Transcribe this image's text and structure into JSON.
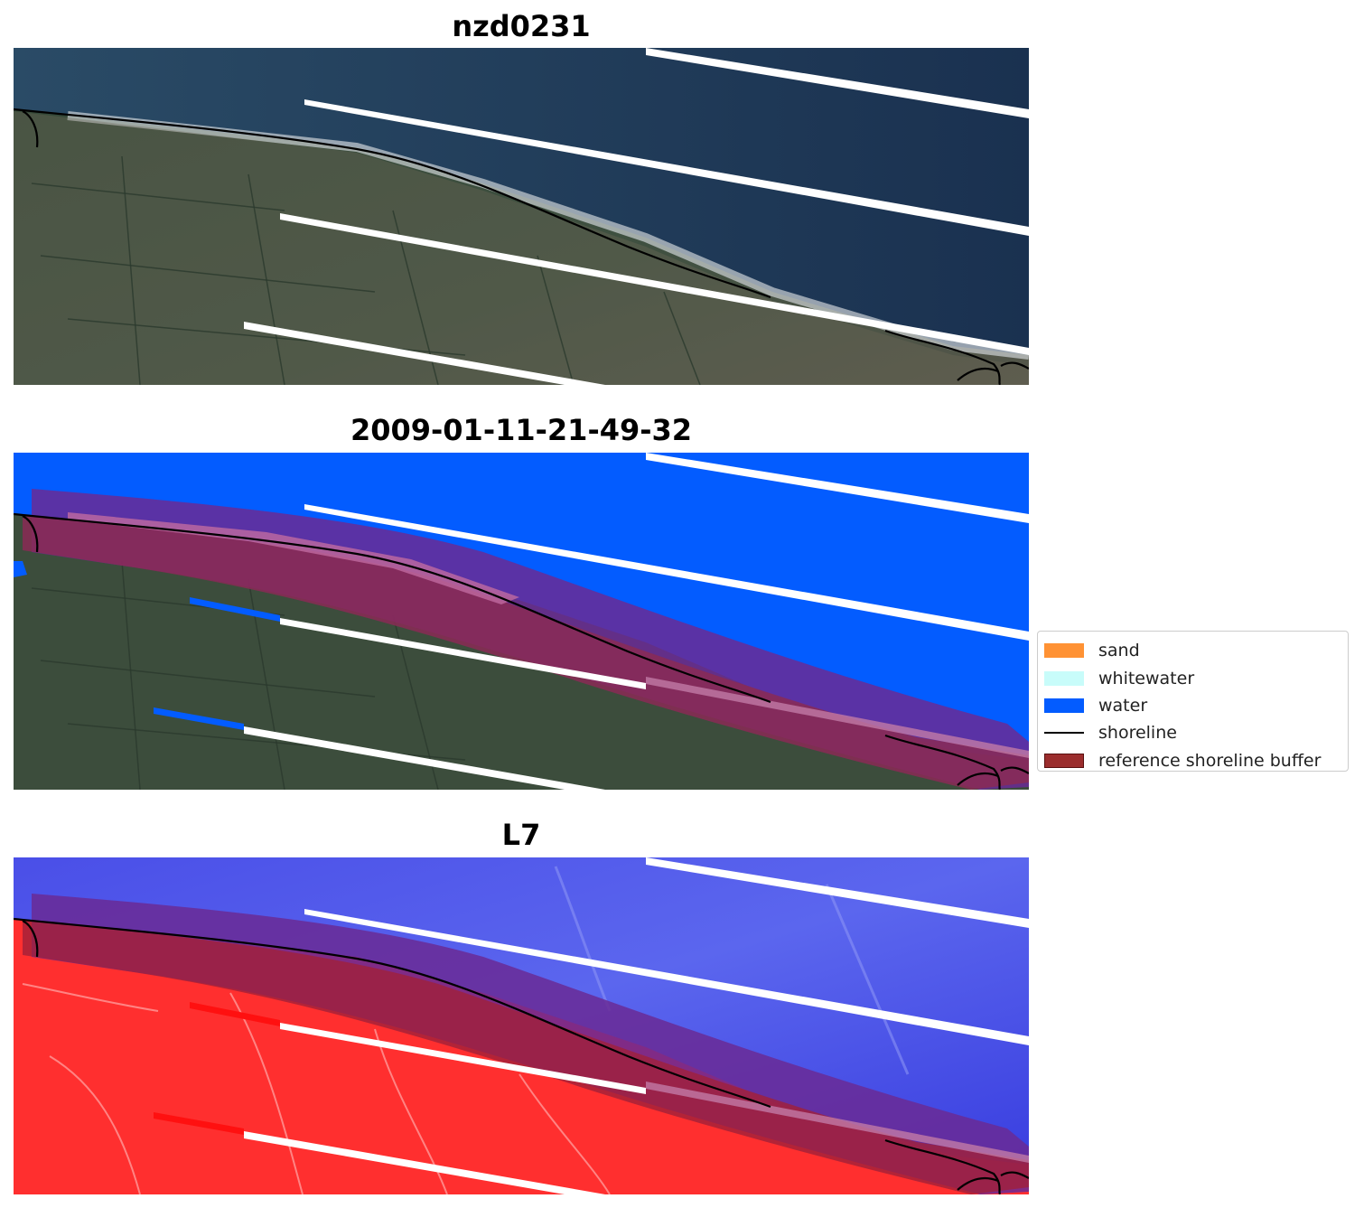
{
  "panels": [
    {
      "title": "nzd0231",
      "kind": "rgb"
    },
    {
      "title": "2009-01-11-21-49-32",
      "kind": "classified"
    },
    {
      "title": "L7",
      "kind": "index"
    }
  ],
  "legend": {
    "items": [
      {
        "label": "sand",
        "color": "#ff9234",
        "type": "patch"
      },
      {
        "label": "whitewater",
        "color": "#c8fcfa",
        "type": "patch"
      },
      {
        "label": "water",
        "color": "#035cff",
        "type": "patch"
      },
      {
        "label": "shoreline",
        "color": "#000000",
        "type": "line"
      },
      {
        "label": "reference shoreline buffer",
        "color": "#9b2d2d",
        "type": "patch"
      }
    ]
  },
  "colors": {
    "ocean": "#1d3553",
    "land": "#3c4d3c",
    "water_class": "#035cff",
    "buffer_overlay": "#7a2a82",
    "index_land": "#ff2f2f",
    "index_water": "#3d45e8",
    "stripe": "#ffffff",
    "shoreline": "#000000"
  }
}
